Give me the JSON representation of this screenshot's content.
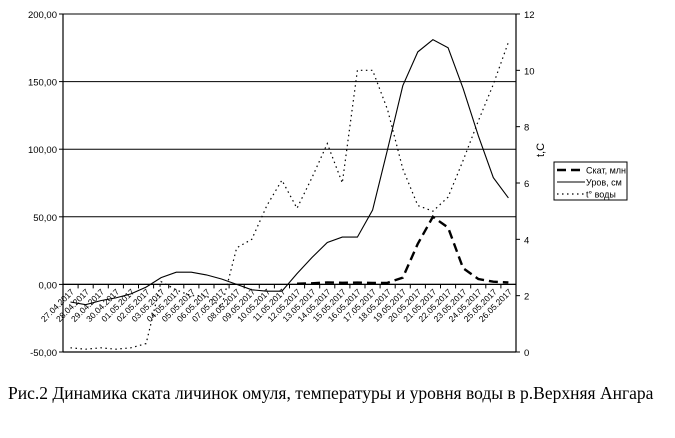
{
  "chart_data": {
    "type": "line",
    "title": "",
    "caption": "Рис.2 Динамика ската личинок омуля, температуры и уровня воды в р.Верхняя Ангара",
    "categories": [
      "27.04.2017",
      "28.04.2017",
      "29.04.2017",
      "30.04.2017",
      "01.05.2017",
      "02.05.2017",
      "03.05.2017",
      "04.05.2017",
      "05.05.2017",
      "06.05.2017",
      "07.05.2017",
      "08.05.2017",
      "09.05.2017",
      "10.05.2017",
      "11.05.2017",
      "12.05.2017",
      "13.05.2017",
      "14.05.2017",
      "15.05.2017",
      "16.05.2017",
      "17.05.2017",
      "18.05.2017",
      "19.05.2017",
      "20.05.2017",
      "21.05.2017",
      "22.05.2017",
      "23.05.2017",
      "24.05.2017",
      "25.05.2017",
      "26.05.2017"
    ],
    "left_axis": {
      "label": "",
      "ylim": [
        -50,
        200
      ],
      "ticks": [
        "-50,00",
        "0,00",
        "50,00",
        "100,00",
        "150,00",
        "200,00"
      ],
      "tick_values": [
        -50,
        0,
        50,
        100,
        150,
        200
      ]
    },
    "right_axis": {
      "label": "t,C",
      "ylim": [
        0,
        12
      ],
      "ticks": [
        "0",
        "2",
        "4",
        "6",
        "8",
        "10",
        "12"
      ],
      "tick_values": [
        0,
        2,
        4,
        6,
        8,
        10,
        12
      ]
    },
    "grid": "horizontal major gridlines (left axis)",
    "legend_position": "right",
    "series": [
      {
        "name": "Скат, млн",
        "axis": "left",
        "style": "dashed-thick",
        "values": [
          null,
          null,
          null,
          null,
          null,
          null,
          null,
          null,
          null,
          null,
          null,
          null,
          null,
          null,
          null,
          0.5,
          0.8,
          1.5,
          1.2,
          1.3,
          1.0,
          1.2,
          5,
          30,
          50,
          42,
          12,
          4,
          2,
          1.5
        ]
      },
      {
        "name": "Уров, см",
        "axis": "left",
        "style": "solid",
        "values": [
          -13,
          -15,
          -12,
          -10,
          -7,
          -2,
          5,
          9,
          9,
          7,
          4,
          0,
          -4,
          -5,
          -5,
          8,
          20,
          31,
          35,
          35,
          55,
          100,
          147,
          172,
          181,
          175,
          145,
          110,
          79,
          64
        ]
      },
      {
        "name": "t° воды",
        "axis": "right",
        "style": "dotted",
        "values": [
          0.15,
          0.1,
          0.15,
          0.1,
          0.15,
          0.3,
          2.5,
          2.2,
          2.0,
          2.0,
          1.6,
          3.7,
          4.0,
          5.2,
          6.1,
          5.1,
          6.2,
          7.4,
          6.0,
          10.0,
          10.0,
          8.6,
          6.5,
          5.2,
          5.0,
          5.5,
          6.8,
          8.2,
          9.5,
          11.0
        ]
      }
    ]
  },
  "legend": {
    "items": [
      {
        "label": "Скат, млн",
        "style": "dashed-thick"
      },
      {
        "label": "Уров, см",
        "style": "solid"
      },
      {
        "label": "t° воды",
        "style": "dotted"
      }
    ]
  },
  "caption": {
    "text": "Рис.2 Динамика ската личинок омуля, температуры и уровня воды в р.Верхняя Ангара"
  }
}
